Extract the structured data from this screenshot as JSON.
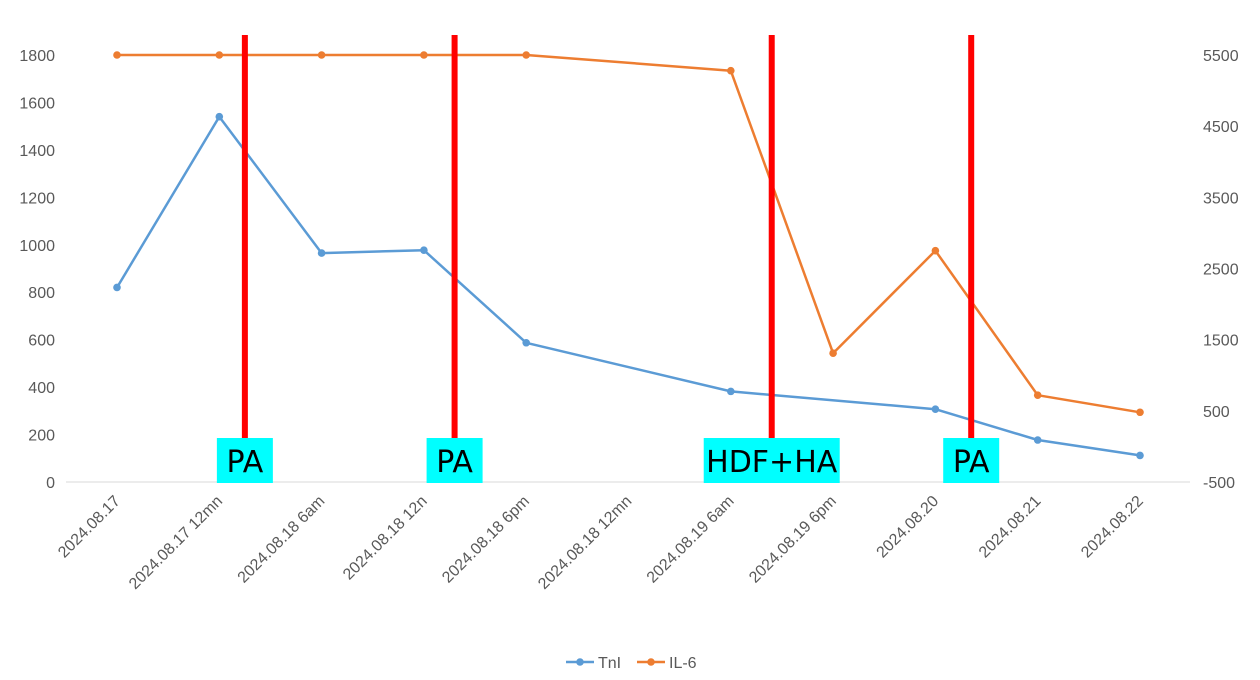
{
  "chart_data": {
    "type": "line",
    "title": "",
    "xlabel": "",
    "ylabel": "",
    "categories": [
      "2024.08.17",
      "2024.08.17 12mn",
      "2024.08.18 6am",
      "2024.08.18 12n",
      "2024.08.18 6pm",
      "2024.08.18 12mn",
      "2024.08.19 6am",
      "2024.08.19 6pm",
      "2024.08.20",
      "2024.08.21",
      "2024.08.22"
    ],
    "y_left": {
      "min": 0,
      "max": 1800,
      "ticks": [
        0,
        200,
        400,
        600,
        800,
        1000,
        1200,
        1400,
        1600,
        1800
      ]
    },
    "y_right": {
      "min": -500,
      "max": 5500,
      "ticks": [
        -500,
        500,
        1500,
        2500,
        3500,
        4500,
        5500
      ]
    },
    "grid": false,
    "legend_position": "bottom",
    "series": [
      {
        "name": "TnI",
        "axis": "left",
        "color": "#5B9BD5",
        "values": [
          820,
          1540,
          965,
          977,
          587,
          null,
          382,
          null,
          307,
          177,
          112
        ]
      },
      {
        "name": "IL-6",
        "axis": "right",
        "color": "#ED7D31",
        "values": [
          5500,
          5500,
          5500,
          5500,
          5500,
          null,
          5280,
          1310,
          2750,
          720,
          480
        ]
      }
    ],
    "annotations": [
      {
        "label": "PA",
        "x_index": 1.25
      },
      {
        "label": "PA",
        "x_index": 3.3
      },
      {
        "label": "HDF+HA",
        "x_index": 6.4
      },
      {
        "label": "PA",
        "x_index": 8.35
      }
    ],
    "annotation_line_color": "#FF0000",
    "annotation_box_color": "#00FFFF"
  }
}
